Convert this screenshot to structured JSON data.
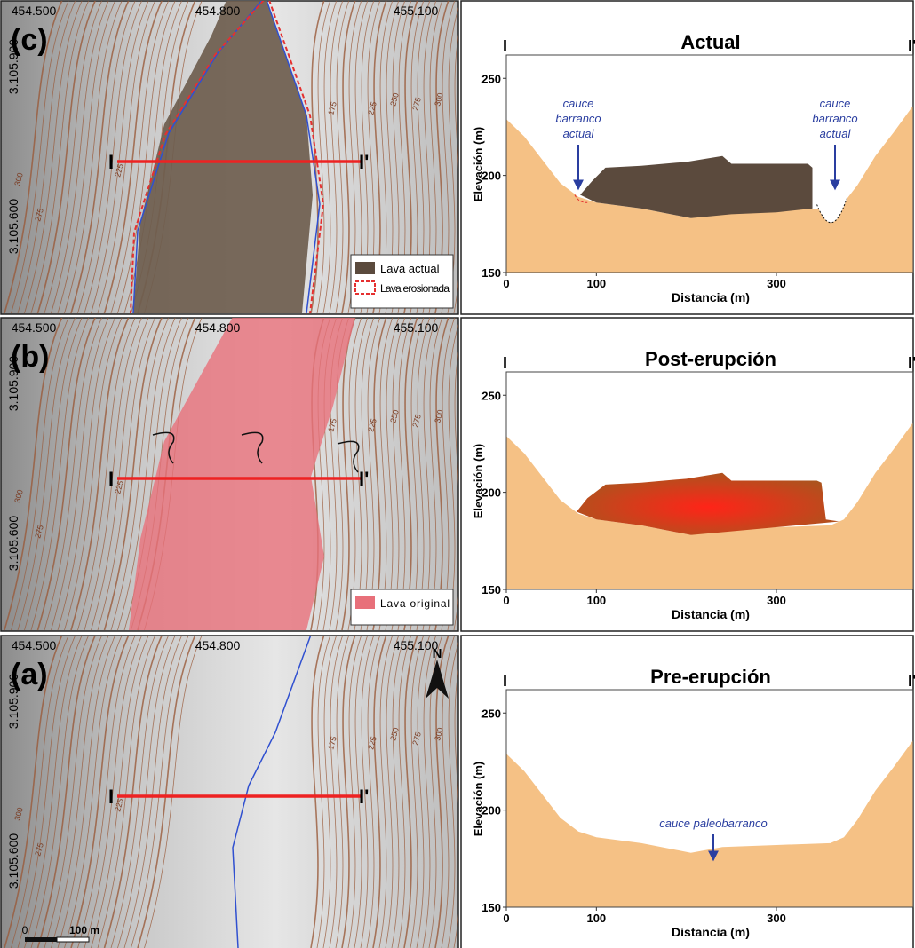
{
  "panels": [
    {
      "map": {
        "letter": "(c)",
        "eastings": [
          "454.500",
          "454.800",
          "455.100"
        ],
        "northings": [
          "3.105.900",
          "3.105.600"
        ],
        "section_start": "I",
        "section_end": "I'",
        "contours": [
          "225",
          "275",
          "300",
          "175",
          "225",
          "250",
          "275",
          "300"
        ],
        "legend": [
          {
            "label": "Lava actual",
            "color": "#5b4a3d"
          },
          {
            "label": "Lava erosionada",
            "color": "#e53030"
          }
        ]
      },
      "profile": {
        "title": "Actual",
        "section_start": "I",
        "section_end": "I'",
        "xlabel": "Distancia (m)",
        "ylabel": "Elevación (m)",
        "xlim": [
          0,
          452
        ],
        "ylim": [
          150,
          262
        ],
        "xticks": [
          0,
          100,
          300
        ],
        "yticks": [
          150,
          200,
          250
        ],
        "terrain": {
          "color": "#f5c185",
          "x": [
            0,
            20,
            40,
            60,
            80,
            100,
            150,
            205,
            240,
            300,
            360,
            375,
            390,
            410,
            430,
            452
          ],
          "y": [
            229,
            220,
            208,
            196,
            189,
            186,
            183,
            178,
            181,
            182,
            183,
            186,
            195,
            210,
            222,
            236
          ]
        },
        "lava": {
          "colors": [
            "#5b4a3d",
            "#5b4a3d"
          ],
          "x": [
            82,
            95,
            110,
            150,
            200,
            240,
            250,
            335,
            340,
            340,
            300,
            250,
            205,
            150,
            100,
            82
          ],
          "y": [
            190,
            197,
            204,
            205,
            207,
            210,
            206,
            206,
            204,
            183,
            181,
            180,
            178,
            183,
            186,
            190
          ]
        },
        "annotations": [
          [
            "cauce",
            "barranco",
            "actual"
          ],
          [
            "cauce",
            "barranco",
            "actual"
          ]
        ]
      }
    },
    {
      "map": {
        "letter": "(b)",
        "eastings": [
          "454.500",
          "454.800",
          "455.100"
        ],
        "northings": [
          "3.105.900",
          "3.105.600"
        ],
        "section_start": "I",
        "section_end": "I'",
        "contours": [
          "225",
          "275",
          "300",
          "175",
          "225",
          "250",
          "275",
          "300"
        ],
        "legend": [
          {
            "label": "Lava original",
            "color": "#e8707a"
          }
        ]
      },
      "profile": {
        "title": "Post-erupción",
        "section_start": "I",
        "section_end": "I'",
        "xlabel": "Distancia (m)",
        "ylabel": "Elevación (m)",
        "xlim": [
          0,
          452
        ],
        "ylim": [
          150,
          262
        ],
        "xticks": [
          0,
          100,
          300
        ],
        "yticks": [
          150,
          200,
          250
        ],
        "terrain": {
          "color": "#f5c185",
          "x": [
            0,
            20,
            40,
            60,
            80,
            100,
            150,
            205,
            240,
            300,
            360,
            375,
            390,
            410,
            430,
            452
          ],
          "y": [
            229,
            220,
            208,
            196,
            189,
            186,
            183,
            178,
            181,
            182,
            183,
            186,
            195,
            210,
            222,
            236
          ]
        },
        "lava": {
          "colors": [
            "#ff2418",
            "#a8561e"
          ],
          "x": [
            78,
            90,
            110,
            150,
            200,
            240,
            250,
            345,
            350,
            355,
            370,
            300,
            205,
            150,
            100,
            78
          ],
          "y": [
            190,
            197,
            204,
            205,
            207,
            210,
            206,
            206,
            205,
            186,
            185,
            182,
            178,
            183,
            186,
            190
          ]
        },
        "annotations": []
      }
    },
    {
      "map": {
        "letter": "(a)",
        "eastings": [
          "454.500",
          "454.800",
          "455.100"
        ],
        "northings": [
          "3.105.900",
          "3.105.600"
        ],
        "section_start": "I",
        "section_end": "I'",
        "contours": [
          "225",
          "275",
          "300",
          "175",
          "225",
          "250",
          "275",
          "300"
        ],
        "legend": [],
        "scale": [
          "0",
          "100 m"
        ],
        "north": "N"
      },
      "profile": {
        "title": "Pre-erupción",
        "section_start": "I",
        "section_end": "I'",
        "xlabel": "Distancia (m)",
        "ylabel": "Elevación (m)",
        "xlim": [
          0,
          452
        ],
        "ylim": [
          150,
          262
        ],
        "xticks": [
          0,
          100,
          300
        ],
        "yticks": [
          150,
          200,
          250
        ],
        "terrain": {
          "color": "#f5c185",
          "x": [
            0,
            20,
            40,
            60,
            80,
            100,
            150,
            205,
            240,
            300,
            360,
            375,
            390,
            410,
            430,
            452
          ],
          "y": [
            229,
            220,
            208,
            196,
            189,
            186,
            183,
            178,
            181,
            182,
            183,
            186,
            195,
            210,
            222,
            236
          ]
        },
        "annotations": [
          [
            "cauce paleobarranco"
          ]
        ]
      }
    }
  ]
}
